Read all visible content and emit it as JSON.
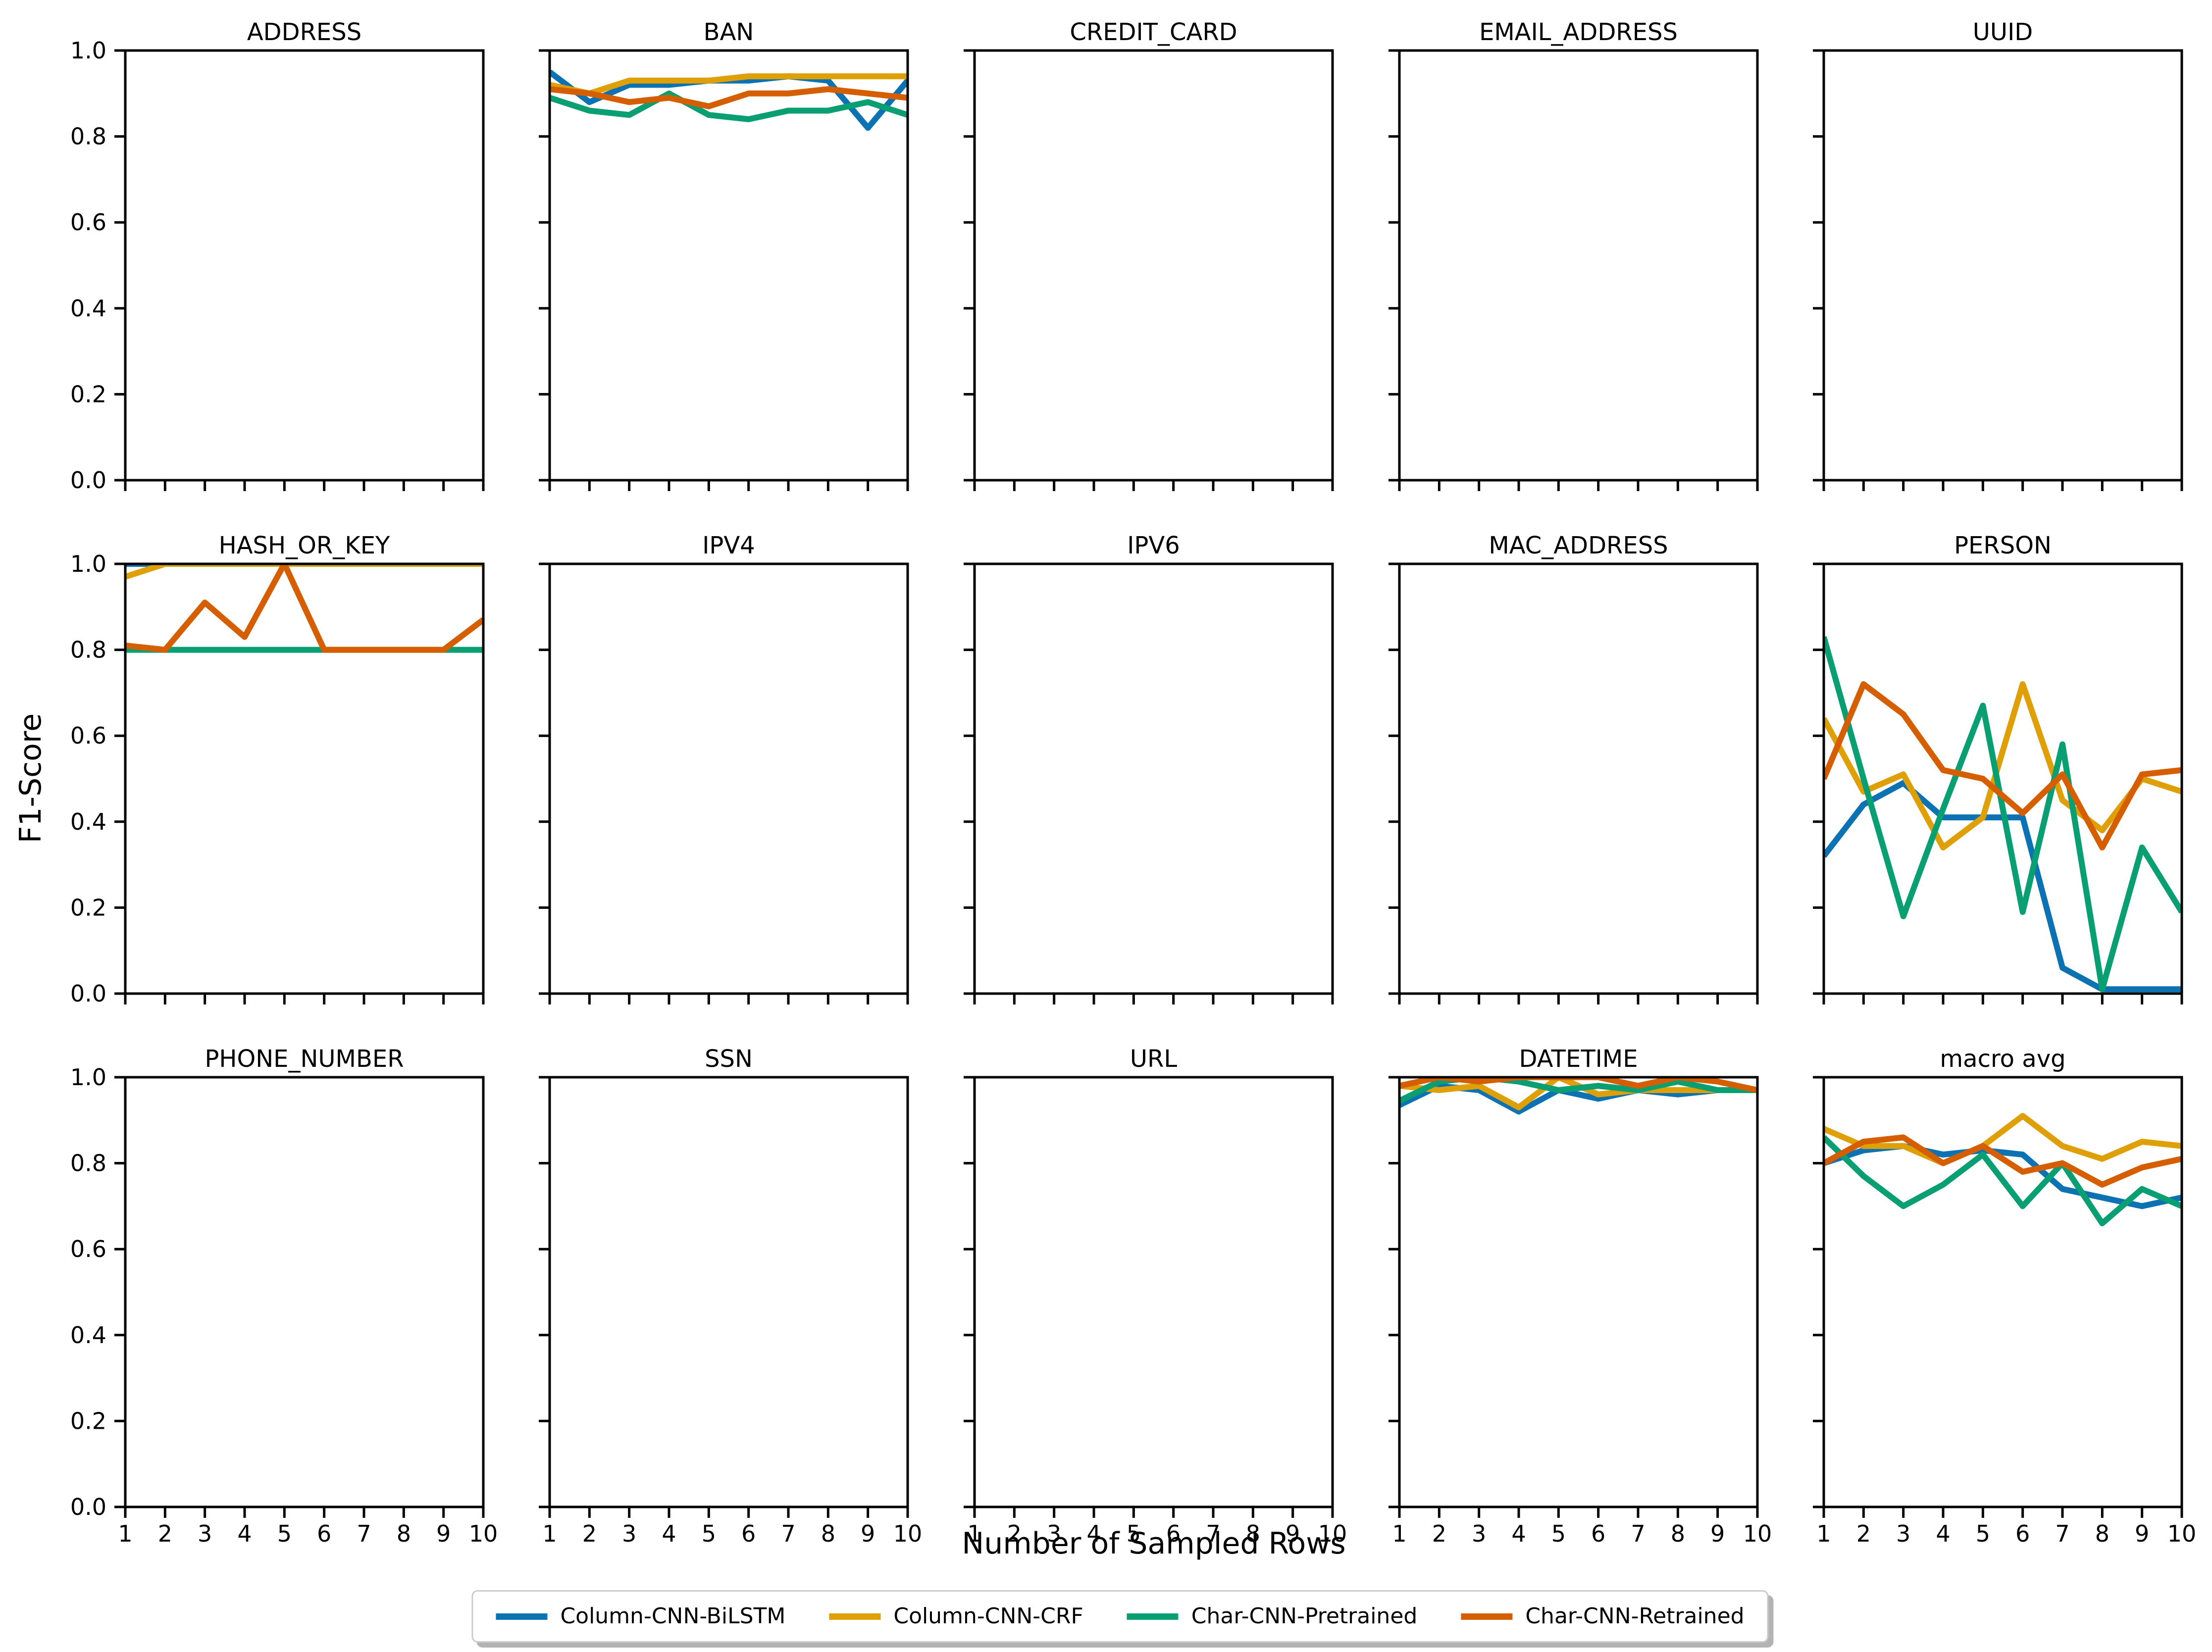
{
  "figure": {
    "ylabel": "F1-Score",
    "xlabel": "Number of Sampled Rows",
    "background": "#ffffff",
    "axis_color": "#000000",
    "y_tick_labels": [
      "0.0",
      "0.2",
      "0.4",
      "0.6",
      "0.8",
      "1.0"
    ],
    "x_tick_labels": [
      "1",
      "2",
      "3",
      "4",
      "5",
      "6",
      "7",
      "8",
      "9",
      "10"
    ]
  },
  "series_meta": [
    {
      "name": "Column-CNN-BiLSTM",
      "color": "#0d72b2"
    },
    {
      "name": "Column-CNN-CRF",
      "color": "#df9f07"
    },
    {
      "name": "Char-CNN-Pretrained",
      "color": "#0a9e73"
    },
    {
      "name": "Char-CNN-Retrained",
      "color": "#d55e00"
    }
  ],
  "chart_data": [
    {
      "type": "line",
      "title": "ADDRESS",
      "x": [
        1,
        2,
        3,
        4,
        5,
        6,
        7,
        8,
        9,
        10
      ],
      "ylim": [
        0.0,
        1.0
      ],
      "series": []
    },
    {
      "type": "line",
      "title": "BAN",
      "x": [
        1,
        2,
        3,
        4,
        5,
        6,
        7,
        8,
        9,
        10
      ],
      "ylim": [
        0.0,
        1.0
      ],
      "series": [
        {
          "name": "Column-CNN-BiLSTM",
          "values": [
            0.95,
            0.88,
            0.92,
            0.92,
            0.93,
            0.93,
            0.94,
            0.93,
            0.82,
            0.93
          ]
        },
        {
          "name": "Column-CNN-CRF",
          "values": [
            0.92,
            0.9,
            0.93,
            0.93,
            0.93,
            0.94,
            0.94,
            0.94,
            0.94,
            0.94
          ]
        },
        {
          "name": "Char-CNN-Pretrained",
          "values": [
            0.89,
            0.86,
            0.85,
            0.9,
            0.85,
            0.84,
            0.86,
            0.86,
            0.88,
            0.85
          ]
        },
        {
          "name": "Char-CNN-Retrained",
          "values": [
            0.91,
            0.9,
            0.88,
            0.89,
            0.87,
            0.9,
            0.9,
            0.91,
            0.9,
            0.89
          ]
        }
      ]
    },
    {
      "type": "line",
      "title": "CREDIT_CARD",
      "x": [
        1,
        2,
        3,
        4,
        5,
        6,
        7,
        8,
        9,
        10
      ],
      "ylim": [
        0.0,
        1.0
      ],
      "series": []
    },
    {
      "type": "line",
      "title": "EMAIL_ADDRESS",
      "x": [
        1,
        2,
        3,
        4,
        5,
        6,
        7,
        8,
        9,
        10
      ],
      "ylim": [
        0.0,
        1.0
      ],
      "series": []
    },
    {
      "type": "line",
      "title": "UUID",
      "x": [
        1,
        2,
        3,
        4,
        5,
        6,
        7,
        8,
        9,
        10
      ],
      "ylim": [
        0.0,
        1.0
      ],
      "series": []
    },
    {
      "type": "line",
      "title": "HASH_OR_KEY",
      "x": [
        1,
        2,
        3,
        4,
        5,
        6,
        7,
        8,
        9,
        10
      ],
      "ylim": [
        0.0,
        1.0
      ],
      "series": [
        {
          "name": "Column-CNN-BiLSTM",
          "values": [
            1.0,
            1.0,
            1.0,
            1.0,
            1.0,
            1.0,
            1.0,
            1.0,
            1.0,
            1.0
          ]
        },
        {
          "name": "Column-CNN-CRF",
          "values": [
            0.97,
            1.0,
            1.0,
            1.0,
            1.0,
            1.0,
            1.0,
            1.0,
            1.0,
            1.0
          ]
        },
        {
          "name": "Char-CNN-Pretrained",
          "values": [
            0.8,
            0.8,
            0.8,
            0.8,
            0.8,
            0.8,
            0.8,
            0.8,
            0.8,
            0.8
          ]
        },
        {
          "name": "Char-CNN-Retrained",
          "values": [
            0.81,
            0.8,
            0.91,
            0.83,
            1.0,
            0.8,
            0.8,
            0.8,
            0.8,
            0.87
          ]
        }
      ]
    },
    {
      "type": "line",
      "title": "IPV4",
      "x": [
        1,
        2,
        3,
        4,
        5,
        6,
        7,
        8,
        9,
        10
      ],
      "ylim": [
        0.0,
        1.0
      ],
      "series": []
    },
    {
      "type": "line",
      "title": "IPV6",
      "x": [
        1,
        2,
        3,
        4,
        5,
        6,
        7,
        8,
        9,
        10
      ],
      "ylim": [
        0.0,
        1.0
      ],
      "series": []
    },
    {
      "type": "line",
      "title": "MAC_ADDRESS",
      "x": [
        1,
        2,
        3,
        4,
        5,
        6,
        7,
        8,
        9,
        10
      ],
      "ylim": [
        0.0,
        1.0
      ],
      "series": []
    },
    {
      "type": "line",
      "title": "PERSON",
      "x": [
        1,
        2,
        3,
        4,
        5,
        6,
        7,
        8,
        9,
        10
      ],
      "ylim": [
        0.0,
        1.0
      ],
      "series": [
        {
          "name": "Column-CNN-BiLSTM",
          "values": [
            0.32,
            0.44,
            0.49,
            0.41,
            0.41,
            0.41,
            0.06,
            0.01,
            0.01,
            0.01
          ]
        },
        {
          "name": "Column-CNN-CRF",
          "values": [
            0.64,
            0.47,
            0.51,
            0.34,
            0.41,
            0.72,
            0.45,
            0.38,
            0.5,
            0.47
          ]
        },
        {
          "name": "Char-CNN-Pretrained",
          "values": [
            0.83,
            0.5,
            0.18,
            0.43,
            0.67,
            0.19,
            0.58,
            0.01,
            0.34,
            0.19
          ]
        },
        {
          "name": "Char-CNN-Retrained",
          "values": [
            0.5,
            0.72,
            0.65,
            0.52,
            0.5,
            0.42,
            0.51,
            0.34,
            0.51,
            0.52
          ]
        }
      ]
    },
    {
      "type": "line",
      "title": "PHONE_NUMBER",
      "x": [
        1,
        2,
        3,
        4,
        5,
        6,
        7,
        8,
        9,
        10
      ],
      "ylim": [
        0.0,
        1.0
      ],
      "series": []
    },
    {
      "type": "line",
      "title": "SSN",
      "x": [
        1,
        2,
        3,
        4,
        5,
        6,
        7,
        8,
        9,
        10
      ],
      "ylim": [
        0.0,
        1.0
      ],
      "series": []
    },
    {
      "type": "line",
      "title": "URL",
      "x": [
        1,
        2,
        3,
        4,
        5,
        6,
        7,
        8,
        9,
        10
      ],
      "ylim": [
        0.0,
        1.0
      ],
      "series": []
    },
    {
      "type": "line",
      "title": "DATETIME",
      "x": [
        1,
        2,
        3,
        4,
        5,
        6,
        7,
        8,
        9,
        10
      ],
      "ylim": [
        0.0,
        1.0
      ],
      "series": [
        {
          "name": "Column-CNN-BiLSTM",
          "values": [
            0.935,
            0.98,
            0.97,
            0.92,
            0.97,
            0.95,
            0.97,
            0.96,
            0.97,
            0.97
          ]
        },
        {
          "name": "Column-CNN-CRF",
          "values": [
            0.98,
            0.97,
            0.98,
            0.93,
            1.0,
            0.96,
            0.97,
            0.97,
            0.97,
            0.97
          ]
        },
        {
          "name": "Char-CNN-Pretrained",
          "values": [
            0.945,
            0.99,
            1.0,
            0.99,
            0.97,
            0.98,
            0.97,
            0.99,
            0.97,
            0.97
          ]
        },
        {
          "name": "Char-CNN-Retrained",
          "values": [
            0.98,
            1.0,
            0.99,
            1.0,
            1.0,
            1.0,
            0.98,
            1.0,
            0.99,
            0.97
          ]
        }
      ]
    },
    {
      "type": "line",
      "title": "macro avg",
      "x": [
        1,
        2,
        3,
        4,
        5,
        6,
        7,
        8,
        9,
        10
      ],
      "ylim": [
        0.0,
        1.0
      ],
      "series": [
        {
          "name": "Column-CNN-BiLSTM",
          "values": [
            0.8,
            0.83,
            0.84,
            0.82,
            0.83,
            0.82,
            0.74,
            0.72,
            0.7,
            0.72
          ]
        },
        {
          "name": "Column-CNN-CRF",
          "values": [
            0.88,
            0.84,
            0.84,
            0.8,
            0.84,
            0.91,
            0.84,
            0.81,
            0.85,
            0.84
          ]
        },
        {
          "name": "Char-CNN-Pretrained",
          "values": [
            0.86,
            0.77,
            0.7,
            0.75,
            0.82,
            0.7,
            0.8,
            0.66,
            0.74,
            0.7
          ]
        },
        {
          "name": "Char-CNN-Retrained",
          "values": [
            0.8,
            0.85,
            0.86,
            0.8,
            0.84,
            0.78,
            0.8,
            0.75,
            0.79,
            0.81
          ]
        }
      ]
    }
  ]
}
